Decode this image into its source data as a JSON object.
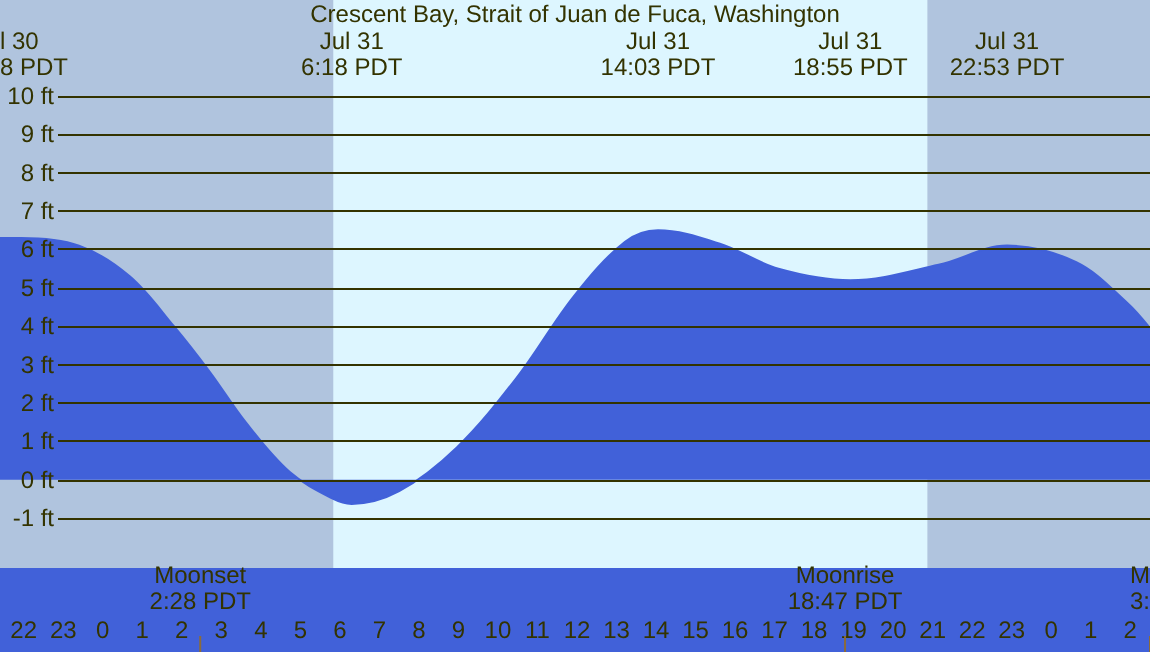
{
  "chart_data": {
    "type": "area",
    "title": "Crescent Bay, Strait of Juan de Fuca, Washington",
    "x": [
      "--07-30T21:24",
      "--07-30T21:56",
      "--07-30T23:24",
      "--07-31T00:41",
      "--07-31T01:48",
      "--07-31T02:43",
      "--07-31T03:37",
      "--07-31T04:44",
      "--07-31T05:50",
      "--07-31T06:18",
      "--07-31T07:30",
      "--07-31T08:58",
      "--07-31T10:28",
      "--07-31T11:56",
      "--07-31T13:13",
      "--07-31T14:03",
      "--07-31T15:37",
      "--07-31T17:06",
      "--07-31T18:55",
      "--07-31T21:09",
      "--07-31T22:53",
      "--08-01T00:38",
      "--08-01T01:56",
      "--08-01T02:30"
    ],
    "series": [
      {
        "color": "#4161d9",
        "values": [
          6.3,
          6.3,
          6.1,
          5.3,
          4.0,
          2.8,
          1.5,
          0.2,
          -0.5,
          -0.63,
          -0.3,
          0.85,
          2.65,
          4.8,
          6.2,
          6.5,
          6.15,
          5.5,
          5.2,
          5.6,
          6.1,
          5.67,
          4.6,
          3.95
        ]
      }
    ],
    "xlim": [
      "--07-30T21:24",
      "--08-01T02:30"
    ],
    "xticks": [
      {
        "value": "--07-30T22:00",
        "label": "22"
      },
      {
        "value": "--07-30T23:00",
        "label": "23"
      },
      {
        "value": "--07-31T00:00",
        "label": "0"
      },
      {
        "value": "--07-31T01:00",
        "label": "1"
      },
      {
        "value": "--07-31T02:00",
        "label": "2"
      },
      {
        "value": "--07-31T03:00",
        "label": "3"
      },
      {
        "value": "--07-31T04:00",
        "label": "4"
      },
      {
        "value": "--07-31T05:00",
        "label": "5"
      },
      {
        "value": "--07-31T06:00",
        "label": "6"
      },
      {
        "value": "--07-31T07:00",
        "label": "7"
      },
      {
        "value": "--07-31T08:00",
        "label": "8"
      },
      {
        "value": "--07-31T09:00",
        "label": "9"
      },
      {
        "value": "--07-31T10:00",
        "label": "10"
      },
      {
        "value": "--07-31T11:00",
        "label": "11"
      },
      {
        "value": "--07-31T12:00",
        "label": "12"
      },
      {
        "value": "--07-31T13:00",
        "label": "13"
      },
      {
        "value": "--07-31T14:00",
        "label": "14"
      },
      {
        "value": "--07-31T15:00",
        "label": "15"
      },
      {
        "value": "--07-31T16:00",
        "label": "16"
      },
      {
        "value": "--07-31T17:00",
        "label": "17"
      },
      {
        "value": "--07-31T18:00",
        "label": "18"
      },
      {
        "value": "--07-31T19:00",
        "label": "19"
      },
      {
        "value": "--07-31T20:00",
        "label": "20"
      },
      {
        "value": "--07-31T21:00",
        "label": "21"
      },
      {
        "value": "--07-31T22:00",
        "label": "22"
      },
      {
        "value": "--07-31T23:00",
        "label": "23"
      },
      {
        "value": "--08-01T00:00",
        "label": "0"
      },
      {
        "value": "--08-01T01:00",
        "label": "1"
      },
      {
        "value": "--08-01T02:00",
        "label": "2"
      }
    ],
    "ylim": [
      -2.3,
      12.5
    ],
    "yticks": [
      {
        "value": -1,
        "label": "-1 ft"
      },
      {
        "value": 0,
        "label": "0 ft"
      },
      {
        "value": 1,
        "label": "1 ft"
      },
      {
        "value": 2,
        "label": "2 ft"
      },
      {
        "value": 3,
        "label": "3 ft"
      },
      {
        "value": 4,
        "label": "4 ft"
      },
      {
        "value": 5,
        "label": "5 ft"
      },
      {
        "value": 6,
        "label": "6 ft"
      },
      {
        "value": 7,
        "label": "7 ft"
      },
      {
        "value": 8,
        "label": "8 ft"
      },
      {
        "value": 9,
        "label": "9 ft"
      },
      {
        "value": 10,
        "label": "10 ft"
      }
    ],
    "grid": "y",
    "marker": "none",
    "bands": [
      {
        "axis": "x",
        "from": "--07-30T21:24",
        "to": "--07-31T05:50",
        "color": "#b0c4de"
      },
      {
        "axis": "x",
        "from": "--07-31T20:52",
        "to": "--08-01T02:30",
        "color": "#b0c4de"
      }
    ],
    "ref_lines": [
      {
        "axis": "x",
        "value": "--07-31T02:28",
        "label": "Moonset\n2:28 PDT"
      },
      {
        "axis": "x",
        "value": "--07-31T18:47",
        "label": "Moonrise\n18:47 PDT"
      },
      {
        "axis": "x",
        "value": "--08-01T02:30",
        "label": "M\n3:"
      }
    ],
    "annotations": [
      "l 30\n8 PDT",
      "Jul 31\n6:18 PDT",
      "Jul 31\n14:03 PDT",
      "Jul 31\n18:55 PDT",
      "Jul 31\n22:53 PDT"
    ]
  }
}
